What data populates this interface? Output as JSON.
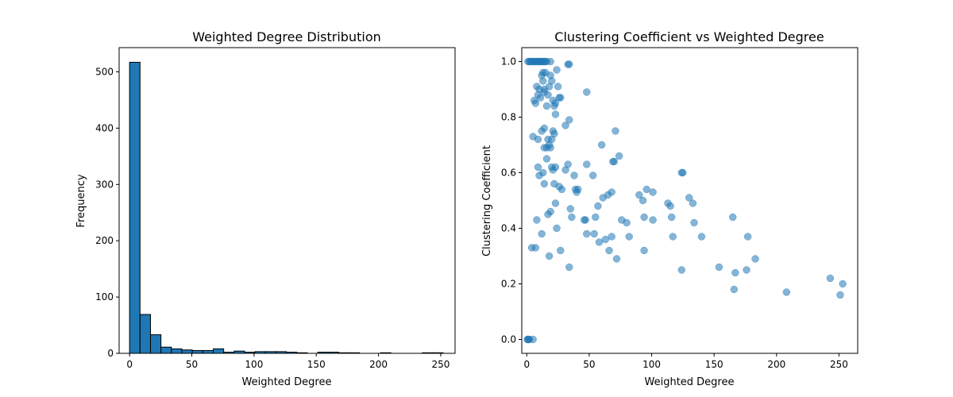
{
  "chart_data": [
    {
      "type": "bar",
      "title": "Weighted Degree Distribution",
      "xlabel": "Weighted Degree",
      "ylabel": "Frequency",
      "xlim": [
        -8.4,
        261.5
      ],
      "ylim": [
        0,
        543
      ],
      "xticks": [
        0,
        50,
        100,
        150,
        200,
        250
      ],
      "yticks": [
        0,
        100,
        200,
        300,
        400,
        500
      ],
      "bin_width": 8.4,
      "bins_start": [
        0,
        8.4,
        16.8,
        25.2,
        33.6,
        42.0,
        50.4,
        58.8,
        67.2,
        75.6,
        84.0,
        92.4,
        100.8,
        109.2,
        117.6,
        126.0,
        134.4,
        142.8,
        151.2,
        159.6,
        168.0,
        176.4,
        184.8,
        193.2,
        201.6,
        210.0,
        218.4,
        226.8,
        235.2,
        243.6
      ],
      "values": [
        517,
        69,
        33,
        11,
        8,
        6,
        5,
        5,
        8,
        2,
        4,
        2,
        3,
        3,
        3,
        2,
        1,
        0,
        2,
        2,
        1,
        1,
        0,
        0,
        1,
        0,
        0,
        0,
        1,
        1
      ],
      "bar_color": "#1f77b4",
      "edge_color": "#000000"
    },
    {
      "type": "scatter",
      "title": "Clustering Coefficient vs Weighted Degree",
      "xlabel": "Weighted Degree",
      "ylabel": "Clustering Coefficient",
      "xlim": [
        -4,
        265
      ],
      "ylim": [
        -0.05,
        1.05
      ],
      "xticks": [
        0,
        50,
        100,
        150,
        200,
        250
      ],
      "yticks": [
        0.0,
        0.2,
        0.4,
        0.6,
        0.8,
        1.0
      ],
      "point_color": "#1f77b4",
      "alpha": 0.55,
      "points": [
        [
          0.5,
          0.0
        ],
        [
          1.0,
          0.0
        ],
        [
          1.5,
          0.0
        ],
        [
          2.0,
          0.0
        ],
        [
          5.0,
          0.0
        ],
        [
          1,
          1.0
        ],
        [
          2,
          1.0
        ],
        [
          3,
          1.0
        ],
        [
          4,
          1.0
        ],
        [
          5,
          1.0
        ],
        [
          6,
          1.0
        ],
        [
          7,
          1.0
        ],
        [
          8,
          1.0
        ],
        [
          9,
          1.0
        ],
        [
          10,
          1.0
        ],
        [
          11,
          1.0
        ],
        [
          12,
          1.0
        ],
        [
          13,
          1.0
        ],
        [
          14,
          1.0
        ],
        [
          15,
          1.0
        ],
        [
          16,
          1.0
        ],
        [
          19,
          1.0
        ],
        [
          33,
          0.99
        ],
        [
          34,
          0.99
        ],
        [
          6,
          0.86
        ],
        [
          7,
          0.85
        ],
        [
          8,
          0.91
        ],
        [
          9,
          0.88
        ],
        [
          10,
          0.9
        ],
        [
          11,
          0.87
        ],
        [
          12,
          0.95
        ],
        [
          13,
          0.93
        ],
        [
          14,
          0.89
        ],
        [
          15,
          0.96
        ],
        [
          16,
          0.84
        ],
        [
          17,
          0.88
        ],
        [
          18,
          0.91
        ],
        [
          19,
          0.95
        ],
        [
          20,
          0.93
        ],
        [
          21,
          0.86
        ],
        [
          22,
          0.84
        ],
        [
          23,
          0.85
        ],
        [
          24,
          0.97
        ],
        [
          25,
          0.91
        ],
        [
          26,
          0.87
        ],
        [
          27,
          0.87
        ],
        [
          13,
          0.96
        ],
        [
          14,
          0.9
        ],
        [
          48,
          0.89
        ],
        [
          34,
          0.79
        ],
        [
          31,
          0.77
        ],
        [
          23,
          0.81
        ],
        [
          5,
          0.73
        ],
        [
          9,
          0.72
        ],
        [
          12,
          0.75
        ],
        [
          14,
          0.76
        ],
        [
          16,
          0.69
        ],
        [
          17,
          0.72
        ],
        [
          18,
          0.7
        ],
        [
          19,
          0.69
        ],
        [
          20,
          0.72
        ],
        [
          21,
          0.75
        ],
        [
          14,
          0.69
        ],
        [
          22,
          0.74
        ],
        [
          60,
          0.7
        ],
        [
          71,
          0.75
        ],
        [
          74,
          0.66
        ],
        [
          69,
          0.64
        ],
        [
          70,
          0.64
        ],
        [
          9,
          0.62
        ],
        [
          10,
          0.59
        ],
        [
          13,
          0.6
        ],
        [
          14,
          0.56
        ],
        [
          16,
          0.65
        ],
        [
          20,
          0.62
        ],
        [
          21,
          0.61
        ],
        [
          22,
          0.56
        ],
        [
          23,
          0.62
        ],
        [
          26,
          0.55
        ],
        [
          28,
          0.54
        ],
        [
          31,
          0.61
        ],
        [
          33,
          0.63
        ],
        [
          38,
          0.59
        ],
        [
          39,
          0.54
        ],
        [
          40,
          0.53
        ],
        [
          41,
          0.54
        ],
        [
          48,
          0.63
        ],
        [
          53,
          0.59
        ],
        [
          57,
          0.48
        ],
        [
          61,
          0.51
        ],
        [
          65,
          0.52
        ],
        [
          68,
          0.53
        ],
        [
          90,
          0.52
        ],
        [
          93,
          0.5
        ],
        [
          96,
          0.54
        ],
        [
          101,
          0.53
        ],
        [
          113,
          0.49
        ],
        [
          115,
          0.48
        ],
        [
          124,
          0.6
        ],
        [
          125,
          0.6
        ],
        [
          130,
          0.51
        ],
        [
          133,
          0.49
        ],
        [
          8,
          0.43
        ],
        [
          12,
          0.38
        ],
        [
          17,
          0.45
        ],
        [
          19,
          0.46
        ],
        [
          23,
          0.49
        ],
        [
          24,
          0.4
        ],
        [
          35,
          0.47
        ],
        [
          36,
          0.44
        ],
        [
          46,
          0.43
        ],
        [
          47,
          0.43
        ],
        [
          48,
          0.38
        ],
        [
          54,
          0.38
        ],
        [
          55,
          0.44
        ],
        [
          58,
          0.35
        ],
        [
          63,
          0.36
        ],
        [
          66,
          0.32
        ],
        [
          68,
          0.37
        ],
        [
          76,
          0.43
        ],
        [
          80,
          0.42
        ],
        [
          82,
          0.37
        ],
        [
          94,
          0.44
        ],
        [
          101,
          0.43
        ],
        [
          116,
          0.44
        ],
        [
          117,
          0.37
        ],
        [
          134,
          0.42
        ],
        [
          140,
          0.37
        ],
        [
          4,
          0.33
        ],
        [
          7,
          0.33
        ],
        [
          18,
          0.3
        ],
        [
          27,
          0.32
        ],
        [
          34,
          0.26
        ],
        [
          72,
          0.29
        ],
        [
          94,
          0.32
        ],
        [
          124,
          0.25
        ],
        [
          154,
          0.26
        ],
        [
          165,
          0.44
        ],
        [
          167,
          0.24
        ],
        [
          176,
          0.25
        ],
        [
          177,
          0.37
        ],
        [
          183,
          0.29
        ],
        [
          166,
          0.18
        ],
        [
          208,
          0.17
        ],
        [
          243,
          0.22
        ],
        [
          251,
          0.16
        ],
        [
          253,
          0.2
        ]
      ]
    }
  ]
}
